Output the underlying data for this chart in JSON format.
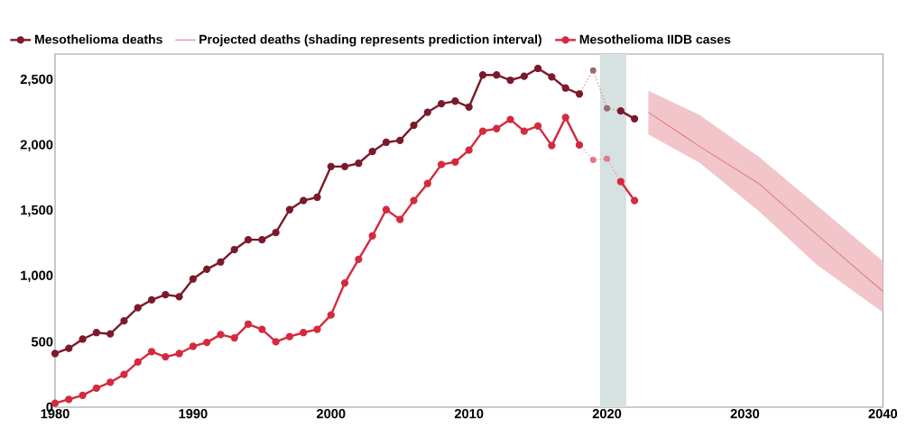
{
  "chart_data": {
    "type": "line",
    "xlim": [
      1980,
      2040
    ],
    "ylim": [
      0,
      2700
    ],
    "xticks": [
      1980,
      1990,
      2000,
      2010,
      2020,
      2030,
      2040
    ],
    "yticks": [
      {
        "value": 0,
        "label": "0"
      },
      {
        "value": 500,
        "label": "500"
      },
      {
        "value": 1000,
        "label": "1,000"
      },
      {
        "value": 1500,
        "label": "1,500"
      },
      {
        "value": 2000,
        "label": "2,000"
      },
      {
        "value": 2500,
        "label": "2,500"
      }
    ],
    "legend": "top left",
    "bands": [
      {
        "axis": "x",
        "from": 2019.5,
        "to": 2021.4,
        "color": "#d6e1e1"
      }
    ],
    "series": [
      {
        "name": "Mesothelioma deaths",
        "color": "#7b1a2b",
        "marker": "circle",
        "x": [
          1980,
          1981,
          1982,
          1983,
          1984,
          1985,
          1986,
          1987,
          1988,
          1989,
          1990,
          1991,
          1992,
          1993,
          1994,
          1995,
          1996,
          1997,
          1998,
          1999,
          2000,
          2001,
          2002,
          2003,
          2004,
          2005,
          2006,
          2007,
          2008,
          2009,
          2010,
          2011,
          2012,
          2013,
          2014,
          2015,
          2016,
          2017,
          2018,
          2019,
          2020,
          2021,
          2022
        ],
        "values": [
          410,
          450,
          520,
          570,
          560,
          660,
          760,
          820,
          860,
          845,
          980,
          1055,
          1110,
          1205,
          1280,
          1280,
          1335,
          1510,
          1580,
          1605,
          1840,
          1840,
          1865,
          1955,
          2025,
          2040,
          2155,
          2255,
          2320,
          2340,
          2295,
          2540,
          2540,
          2500,
          2530,
          2590,
          2525,
          2440,
          2395,
          null,
          null,
          2265,
          2205
        ]
      },
      {
        "color": "#9a6a70",
        "marker": "circle",
        "line_style": "dotted",
        "x": [
          2018,
          2019,
          2020,
          2021
        ],
        "values": [
          2395,
          2575,
          2285,
          2265
        ]
      },
      {
        "name": "Projected deaths (shading represents prediction interval)",
        "color": "#e07f8a",
        "marker": "none",
        "x": [
          2023,
          2026.7,
          2031,
          2035.2,
          2040
        ],
        "values": [
          2255,
          1995,
          1710,
          1320,
          885
        ],
        "lower": [
          2085,
          1870,
          1500,
          1090,
          725
        ],
        "upper": [
          2420,
          2235,
          1915,
          1545,
          1115
        ]
      },
      {
        "name": "Mesothelioma IIDB cases",
        "color": "#d42a3f",
        "marker": "circle",
        "x": [
          1980,
          1981,
          1982,
          1983,
          1984,
          1985,
          1986,
          1987,
          1988,
          1989,
          1990,
          1991,
          1992,
          1993,
          1994,
          1995,
          1996,
          1997,
          1998,
          1999,
          2000,
          2001,
          2002,
          2003,
          2004,
          2005,
          2006,
          2007,
          2008,
          2009,
          2010,
          2011,
          2012,
          2013,
          2014,
          2015,
          2016,
          2017,
          2018,
          2019,
          2020,
          2021,
          2022
        ],
        "values": [
          30,
          60,
          90,
          145,
          190,
          250,
          345,
          425,
          385,
          410,
          465,
          495,
          555,
          530,
          635,
          595,
          500,
          540,
          570,
          595,
          705,
          950,
          1130,
          1310,
          1510,
          1435,
          1580,
          1710,
          1855,
          1875,
          1965,
          2110,
          2130,
          2200,
          2110,
          2150,
          2000,
          2215,
          2005,
          null,
          null,
          1725,
          1580
        ]
      },
      {
        "color": "#e27a88",
        "marker": "circle",
        "line_style": "dotted",
        "x": [
          2018,
          2019,
          2020,
          2021
        ],
        "values": [
          2005,
          1890,
          1900,
          1725
        ]
      }
    ]
  }
}
